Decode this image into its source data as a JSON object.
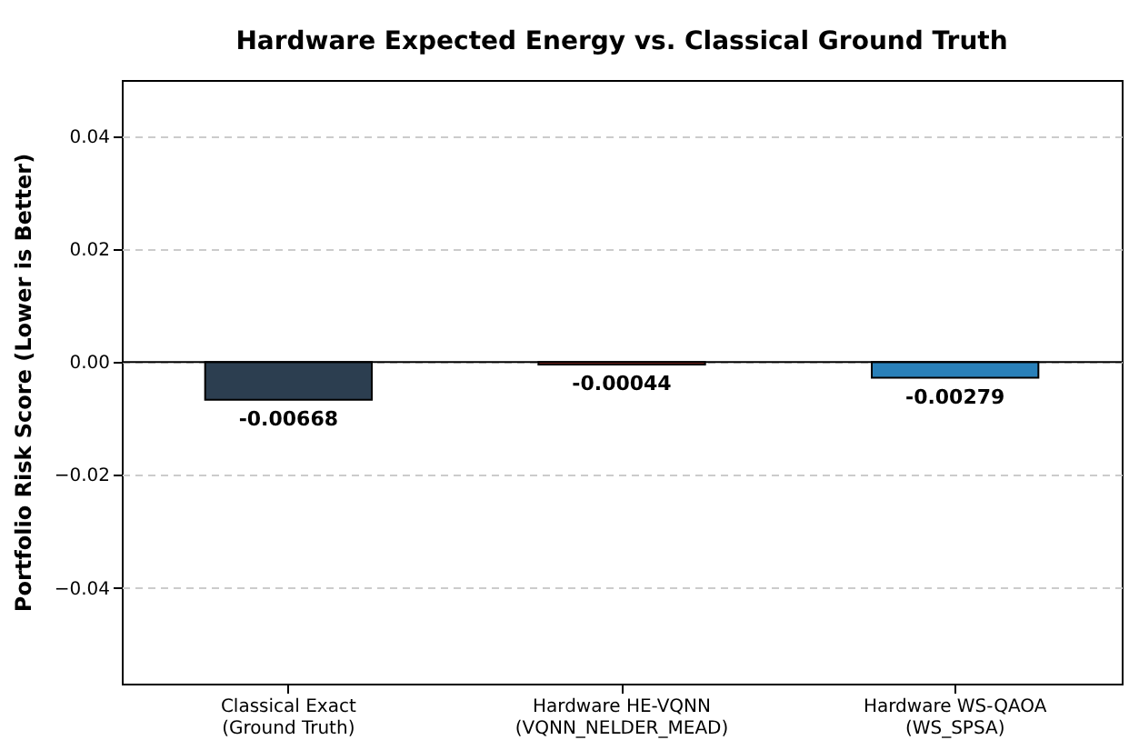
{
  "chart_data": {
    "type": "bar",
    "title": "Hardware Expected Energy vs. Classical Ground Truth",
    "ylabel": "Portfolio Risk Score (Lower is Better)",
    "categories": [
      "Classical Exact\n(Ground Truth)",
      "Hardware HE-VQNN\n(VQNN_NELDER_MEAD)",
      "Hardware WS-QAOA\n(WS_SPSA)"
    ],
    "values": [
      -0.00668,
      -0.00044,
      -0.00279
    ],
    "colors": [
      "#2c3e50",
      "#c0392b",
      "#2980b9"
    ],
    "ylim": [
      -0.057,
      0.05
    ],
    "yticks": [
      {
        "value": -0.04,
        "label": "−0.04"
      },
      {
        "value": -0.02,
        "label": "−0.02"
      },
      {
        "value": 0,
        "label": "0.00"
      },
      {
        "value": 0.02,
        "label": "0.02"
      },
      {
        "value": 0.04,
        "label": "0.04"
      }
    ],
    "ref_lines": [
      {
        "axis": "y",
        "value": 0,
        "color": "#000000"
      }
    ],
    "grid": "y",
    "data_labels": true
  }
}
